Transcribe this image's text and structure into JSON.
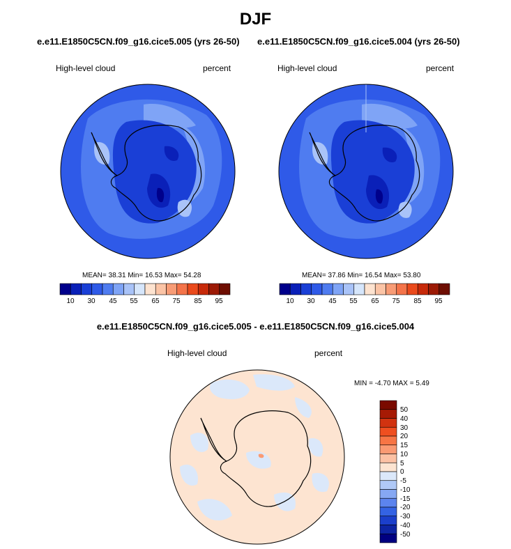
{
  "title": "DJF",
  "chart_data": [
    {
      "type": "heatmap",
      "title": "e.e11.E1850C5CN.f09_g16.cice5.005 (yrs 26-50)",
      "left_label": "High-level cloud",
      "right_label": "percent",
      "stats": {
        "mean": "38.31",
        "min": "16.53",
        "max": "54.28"
      },
      "stats_text": "MEAN=  38.31   Min=  16.53   Max=  54.28",
      "colorbar_ticks": [
        "10",
        "30",
        "45",
        "55",
        "65",
        "75",
        "85",
        "95"
      ]
    },
    {
      "type": "heatmap",
      "title": "e.e11.E1850C5CN.f09_g16.cice5.004 (yrs 26-50)",
      "left_label": "High-level cloud",
      "right_label": "percent",
      "stats": {
        "mean": "37.86",
        "min": "16.54",
        "max": "53.80"
      },
      "stats_text": "MEAN=  37.86   Min=  16.54   Max=  53.80",
      "colorbar_ticks": [
        "10",
        "30",
        "45",
        "55",
        "65",
        "75",
        "85",
        "95"
      ]
    },
    {
      "type": "heatmap",
      "title": "e.e11.E1850C5CN.f09_g16.cice5.005 - e.e11.E1850C5CN.f09_g16.cice5.004",
      "left_label": "High-level cloud",
      "right_label": "percent",
      "stats": {
        "min": "-4.70",
        "max": "5.49"
      },
      "stats_text": "MIN =  -4.70 MAX =   5.49",
      "colorbar_ticks": [
        "50",
        "40",
        "30",
        "20",
        "15",
        "10",
        "5",
        "0",
        "-5",
        "-10",
        "-15",
        "-20",
        "-30",
        "-40",
        "-50"
      ]
    }
  ],
  "colors": {
    "abs_scale": [
      "#00008b",
      "#0a20b8",
      "#1a3fd6",
      "#2f5ae8",
      "#4f7cf0",
      "#7fa4f6",
      "#a9c3f8",
      "#d6e6fb",
      "#fde3d0",
      "#fbc4a6",
      "#f89c76",
      "#f4744a",
      "#ea4a1c",
      "#c72a0a",
      "#9c1a05",
      "#6e0e02"
    ],
    "diff_scale": [
      "#7a0a00",
      "#a61a04",
      "#d13310",
      "#ef4f20",
      "#f77545",
      "#fa9a73",
      "#fcc1a4",
      "#fde4d1",
      "#dbe8fa",
      "#b0c9f7",
      "#86a8f3",
      "#5c84ee",
      "#3463e4",
      "#1b3fcb",
      "#0d24a3",
      "#000080"
    ],
    "ocean_abs": "#2f5ae8",
    "ocean_diff": "#fde4d1"
  }
}
